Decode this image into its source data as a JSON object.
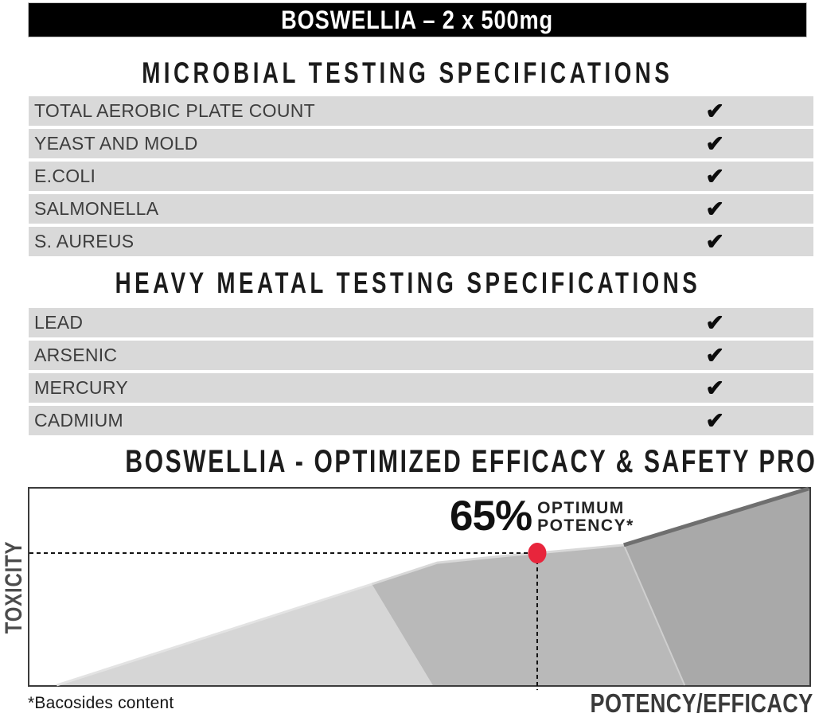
{
  "header": {
    "title": "BOSWELLIA – 2 x 500mg"
  },
  "sections": {
    "microbial": {
      "heading": "MICROBIAL TESTING SPECIFICATIONS",
      "rows": [
        {
          "label": "TOTAL AEROBIC PLATE COUNT",
          "status": "pass",
          "check_icon": "✔"
        },
        {
          "label": "YEAST AND MOLD",
          "status": "pass",
          "check_icon": "✔"
        },
        {
          "label": "E.COLI",
          "status": "pass",
          "check_icon": "✔"
        },
        {
          "label": "SALMONELLA",
          "status": "pass",
          "check_icon": "✔"
        },
        {
          "label": "S. AUREUS",
          "status": "pass",
          "check_icon": "✔"
        }
      ]
    },
    "heavy_metal": {
      "heading": "HEAVY MEATAL TESTING SPECIFICATIONS",
      "rows": [
        {
          "label": "LEAD",
          "status": "pass",
          "check_icon": "✔"
        },
        {
          "label": "ARSENIC",
          "status": "pass",
          "check_icon": "✔"
        },
        {
          "label": "MERCURY",
          "status": "pass",
          "check_icon": "✔"
        },
        {
          "label": "CADMIUM",
          "status": "pass",
          "check_icon": "✔"
        }
      ]
    },
    "profile": {
      "heading": "BOSWELLIA - OPTIMIZED EFFICACY & SAFETY PROFILE",
      "y_axis_label": "TOXICITY",
      "x_axis_label": "POTENCY/EFFICACY",
      "footnote": "*Bacosides content",
      "annotation_value": "65%",
      "annotation_line1": "OPTIMUM",
      "annotation_line2": "POTENCY*"
    }
  },
  "chart_data": {
    "type": "area",
    "title": "BOSWELLIA - OPTIMIZED EFFICACY & SAFETY PROFILE",
    "xlabel": "POTENCY/EFFICACY",
    "ylabel": "TOXICITY",
    "x_axis_numeric": false,
    "y_axis_numeric": false,
    "description": "Stylized toxicity-vs-potency curve: toxicity rises gradually, plateaus around the optimum potency point (65%), then climbs steeply at higher potency.",
    "optimum": {
      "label": "65% OPTIMUM POTENCY*",
      "x_pct": 65.1,
      "y_pct": 67.2
    },
    "curve_points_pct": [
      [
        3.5,
        0
      ],
      [
        43.9,
        51.4
      ],
      [
        52.3,
        62.3
      ],
      [
        61.5,
        66
      ],
      [
        65.1,
        67.2
      ],
      [
        76.2,
        71.3
      ],
      [
        99.9,
        100
      ]
    ],
    "bands": [
      {
        "name": "zone-low-potency",
        "fill": "#d6d6d6",
        "points_pct": [
          [
            3.5,
            0
          ],
          [
            43.9,
            51.4
          ],
          [
            51.7,
            0
          ]
        ]
      },
      {
        "name": "zone-optimum-potency",
        "fill": "#b9b9b9",
        "points_pct": [
          [
            43.9,
            51.4
          ],
          [
            52.3,
            62.3
          ],
          [
            61.5,
            66
          ],
          [
            65.1,
            67.2
          ],
          [
            76.2,
            71.3
          ],
          [
            84,
            0
          ],
          [
            51.7,
            0
          ]
        ]
      },
      {
        "name": "zone-high-potency",
        "fill": "#a9a9a9",
        "points_pct": [
          [
            76.2,
            71.3
          ],
          [
            99.9,
            100
          ],
          [
            100,
            100
          ],
          [
            100,
            0
          ],
          [
            84,
            0
          ]
        ]
      }
    ],
    "edges": [
      {
        "name": "slope-highlight-left",
        "stroke": "#e3e3e3",
        "width": 3,
        "points_pct": [
          [
            3.5,
            0
          ],
          [
            43.9,
            51.4
          ]
        ]
      },
      {
        "name": "slope-highlight-mid",
        "stroke": "#d8d8d8",
        "width": 3,
        "points_pct": [
          [
            43.9,
            51.4
          ],
          [
            52.3,
            62.3
          ],
          [
            61.5,
            66
          ],
          [
            65.1,
            67.2
          ],
          [
            76.2,
            71.3
          ]
        ]
      },
      {
        "name": "zone-separator",
        "stroke": "#cfcfcf",
        "width": 2,
        "points_pct": [
          [
            76.2,
            71.3
          ],
          [
            84,
            0
          ]
        ]
      },
      {
        "name": "steep-toxicity-ridge",
        "stroke": "#6f6f6f",
        "width": 5,
        "points_pct": [
          [
            76.2,
            71.3
          ],
          [
            99.9,
            100
          ]
        ]
      }
    ],
    "guides": {
      "dashed_h": {
        "from_pct": [
          0,
          67.2
        ],
        "to_pct": [
          65.1,
          67.2
        ]
      },
      "dashed_v": {
        "from_pct": [
          65.1,
          67.2
        ],
        "to_pct": [
          65.1,
          -2.5
        ]
      },
      "dot_pct": [
        65.1,
        67.2
      ],
      "dot_color": "#e8253c"
    }
  },
  "colors": {
    "header_bg": "#000000",
    "row_bg": "#d9d9d9",
    "accent_red": "#e8253c",
    "zone_light": "#d6d6d6",
    "zone_mid": "#b9b9b9",
    "zone_dark": "#a9a9a9",
    "ridge": "#6f6f6f"
  }
}
